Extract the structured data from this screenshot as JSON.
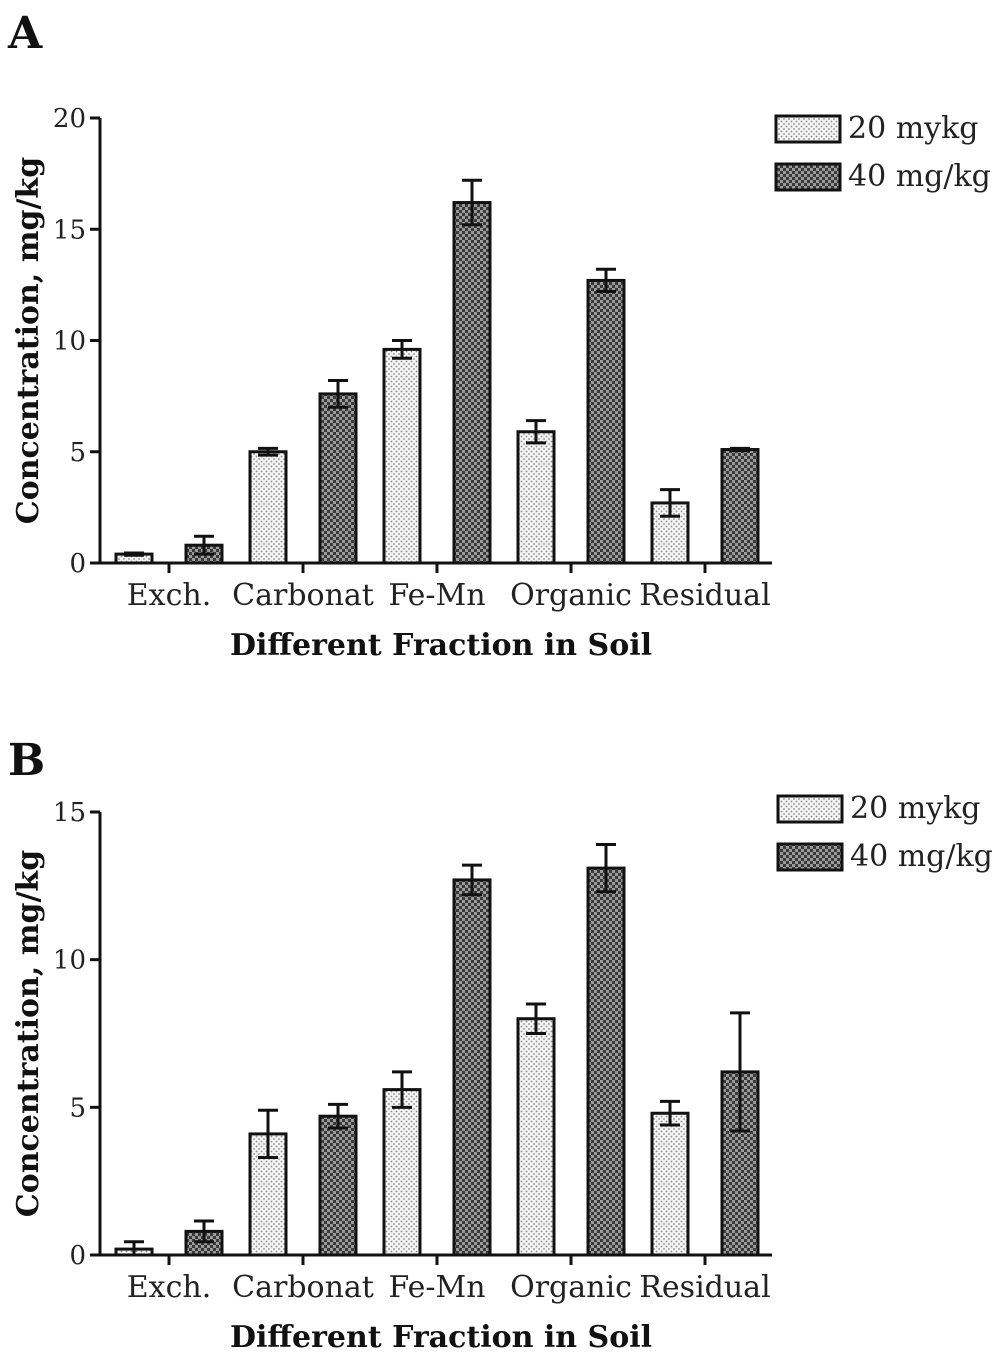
{
  "chart_data": [
    {
      "type": "bar",
      "panel_label": "A",
      "categories": [
        "Exch.",
        "Carbonat",
        "Fe-Mn",
        "Organic",
        "Residual"
      ],
      "series": [
        {
          "name": "20 mykg",
          "values": [
            0.4,
            5.0,
            9.6,
            5.9,
            2.7
          ],
          "errors": [
            0.05,
            0.15,
            0.4,
            0.5,
            0.6
          ]
        },
        {
          "name": "40 mg/kg",
          "values": [
            0.8,
            7.6,
            16.2,
            12.7,
            5.1
          ],
          "errors": [
            0.4,
            0.6,
            1.0,
            0.5,
            0.05
          ]
        }
      ],
      "xlabel": "Different Fraction in Soil",
      "ylabel": "Concentration, mg/kg",
      "ylim": [
        0,
        20
      ],
      "yticks": [
        0,
        5,
        10,
        15,
        20
      ],
      "legend_position": "top-right",
      "grid": false,
      "colors": {
        "series_1_fill": "#efefef",
        "series_2_fill": "#4a4a4a",
        "axis": "#111111"
      }
    },
    {
      "type": "bar",
      "panel_label": "B",
      "categories": [
        "Exch.",
        "Carbonat",
        "Fe-Mn",
        "Organic",
        "Residual"
      ],
      "series": [
        {
          "name": "20 mykg",
          "values": [
            0.2,
            4.1,
            5.6,
            8.0,
            4.8
          ],
          "errors": [
            0.25,
            0.8,
            0.6,
            0.5,
            0.4
          ]
        },
        {
          "name": "40 mg/kg",
          "values": [
            0.8,
            4.7,
            12.7,
            13.1,
            6.2
          ],
          "errors": [
            0.35,
            0.4,
            0.5,
            0.8,
            2.0
          ]
        }
      ],
      "xlabel": "Different Fraction in Soil",
      "ylabel": "Concentration, mg/kg",
      "ylim": [
        0,
        15
      ],
      "yticks": [
        0,
        5,
        10,
        15
      ],
      "legend_position": "top-right",
      "grid": false,
      "colors": {
        "series_1_fill": "#efefef",
        "series_2_fill": "#4a4a4a",
        "axis": "#111111"
      }
    }
  ]
}
